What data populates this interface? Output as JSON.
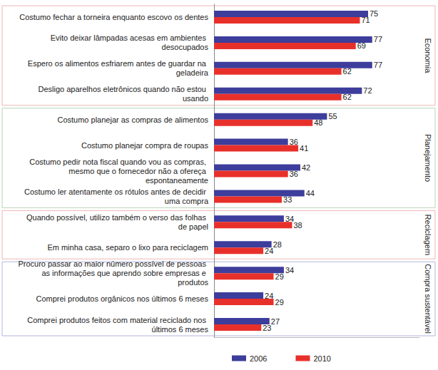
{
  "chart_data": {
    "type": "bar",
    "orientation": "horizontal",
    "categories": [
      "Costumo fechar a torneira enquanto escovo os dentes",
      "Evito deixar lâmpadas acesas em ambientes desocupados",
      "Espero os alimentos esfriarem antes de guardar na geladeira",
      "Desligo aparelhos eletrônicos quando não estou usando",
      "Costumo planejar as compras de alimentos",
      "Costumo planejar compra de roupas",
      "Costumo pedir nota fiscal quando vou as compras, mesmo que o fornecedor não a ofereça espontaneamente",
      "Costumo ler atentamente os rótulos antes de decidir uma compra",
      "Quando possível, utilizo também o verso das folhas de papel",
      "Em minha casa, separo o lixo para reciclagem",
      "Procuro passar ao maior número possível de pessoas as informações que aprendo sobre empresas e produtos",
      "Comprei produtos orgânicos nos últimos 6 meses",
      "Comprei produtos feitos com material reciclado nos últimos 6 meses"
    ],
    "category_groups": [
      "Economia",
      "Economia",
      "Economia",
      "Economia",
      "Planejamento",
      "Planejamento",
      "Planejamento",
      "Planejamento",
      "Reciclagem",
      "Reciclagem",
      "Compra sustentável",
      "Compra sustentável",
      "Compra sustentável"
    ],
    "series": [
      {
        "name": "2006",
        "color": "#3d3d9c",
        "values": [
          75,
          77,
          77,
          72,
          55,
          36,
          42,
          44,
          34,
          28,
          34,
          24,
          27
        ]
      },
      {
        "name": "2010",
        "color": "#e8302b",
        "values": [
          71,
          69,
          62,
          62,
          48,
          41,
          36,
          33,
          38,
          24,
          29,
          29,
          23
        ]
      }
    ],
    "xlim": [
      0,
      100
    ],
    "data_labels": true,
    "tick_labels": "y",
    "grid": false,
    "legend": "bottom"
  }
}
